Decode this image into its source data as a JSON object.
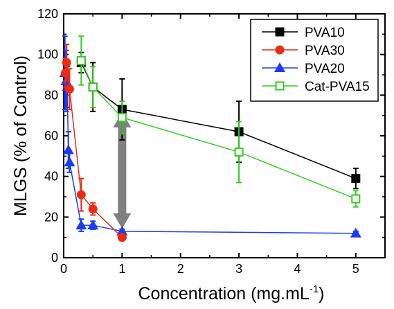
{
  "chart_data": {
    "type": "scatter",
    "title": "",
    "xlabel": "Concentration (mg.mL",
    "xlabel_superscript": "-1",
    "xlabel_close": ")",
    "ylabel": "MLGS (% of Control)",
    "xlim": [
      0,
      5.5
    ],
    "ylim": [
      0,
      120
    ],
    "x_ticks": [
      0,
      1,
      2,
      3,
      4,
      5
    ],
    "y_ticks": [
      0,
      20,
      40,
      60,
      80,
      100,
      120
    ],
    "grid": false,
    "legend_position": "top-right",
    "series": [
      {
        "name": "PVA10",
        "color": "#000000",
        "marker": "square-filled",
        "x": [
          0.3,
          0.5,
          1,
          3,
          5
        ],
        "y": [
          96,
          84,
          73,
          62,
          39
        ],
        "err": [
          5,
          12,
          15,
          15,
          5
        ]
      },
      {
        "name": "PVA30",
        "color": "#ee2a10",
        "marker": "circle-filled",
        "x": [
          0.03,
          0.05,
          0.1,
          0.3,
          0.5,
          1
        ],
        "y": [
          91,
          96,
          83,
          31,
          24,
          10
        ],
        "err": [
          7,
          9,
          10,
          8,
          3,
          1
        ]
      },
      {
        "name": "PVA20",
        "color": "#1a3bf0",
        "marker": "triangle-filled",
        "x": [
          0.02,
          0.04,
          0.06,
          0.08,
          0.1,
          0.3,
          0.5,
          1,
          5
        ],
        "y": [
          91,
          87,
          84,
          53,
          47,
          16,
          16,
          13,
          12
        ],
        "err": [
          18,
          15,
          10,
          9,
          5,
          3,
          2,
          1,
          1
        ]
      },
      {
        "name": "Cat-PVA15",
        "color": "#33cc22",
        "marker": "square-open",
        "x": [
          0.3,
          0.5,
          1,
          3,
          5
        ],
        "y": [
          97,
          84,
          69,
          52,
          29
        ],
        "err": [
          12,
          10,
          8,
          15,
          4
        ]
      }
    ],
    "annotation": {
      "type": "double-arrow",
      "color": "#808080",
      "x": 1,
      "y_from": 13,
      "y_to": 73
    }
  }
}
